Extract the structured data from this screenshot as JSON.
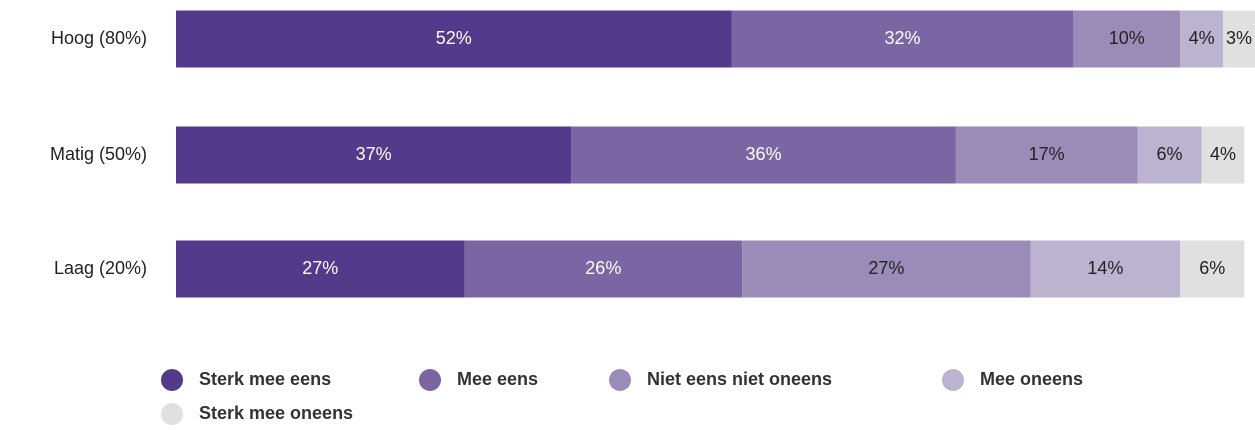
{
  "chart_data": {
    "type": "stacked-bar-horizontal",
    "categories": [
      "Hoog (80%)",
      "Matig (50%)",
      "Laag (20%)"
    ],
    "series": [
      {
        "name": "Sterk mee eens",
        "color": "#553a8b",
        "values": [
          52,
          37,
          27
        ],
        "value_labels": [
          "52%",
          "37%",
          "27%"
        ]
      },
      {
        "name": "Mee eens",
        "color": "#7b65a3",
        "values": [
          32,
          36,
          26
        ],
        "value_labels": [
          "32%",
          "36%",
          "26%"
        ]
      },
      {
        "name": "Niet eens niet oneens",
        "color": "#9b8bb8",
        "values": [
          10,
          17,
          27
        ],
        "value_labels": [
          "10%",
          "17%",
          "27%"
        ]
      },
      {
        "name": "Mee oneens",
        "color": "#bcb3d0",
        "values": [
          4,
          6,
          14
        ],
        "value_labels": [
          "4%",
          "6%",
          "14%"
        ]
      },
      {
        "name": "Sterk mee oneens",
        "color": "#e0e0e0",
        "values": [
          3,
          4,
          6
        ],
        "value_labels": [
          "3%",
          "4%",
          "6%"
        ]
      }
    ]
  }
}
